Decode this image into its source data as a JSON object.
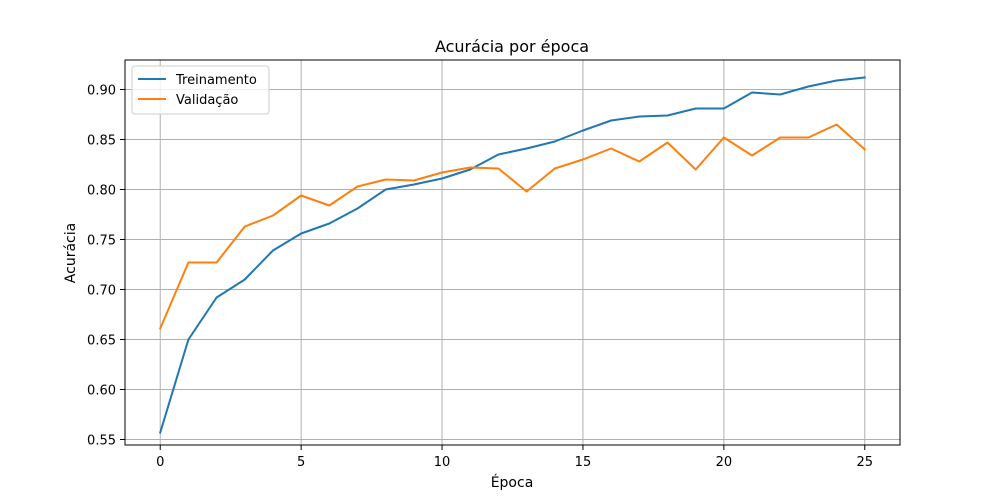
{
  "chart_data": {
    "type": "line",
    "title": "Acurácia por época",
    "xlabel": "Época",
    "ylabel": "Acurácia",
    "xlim": [
      -1.25,
      26.25
    ],
    "ylim": [
      0.5445,
      0.9295
    ],
    "xticks": [
      0,
      5,
      10,
      15,
      20,
      25
    ],
    "yticks": [
      0.55,
      0.6,
      0.65,
      0.7,
      0.75,
      0.8,
      0.85,
      0.9
    ],
    "ytick_labels": [
      "0.55",
      "0.60",
      "0.65",
      "0.70",
      "0.75",
      "0.80",
      "0.85",
      "0.90"
    ],
    "grid": true,
    "legend": "top-left",
    "x": [
      0,
      1,
      2,
      3,
      4,
      5,
      6,
      7,
      8,
      9,
      10,
      11,
      12,
      13,
      14,
      15,
      16,
      17,
      18,
      19,
      20,
      21,
      22,
      23,
      24,
      25
    ],
    "series": [
      {
        "name": "Treinamento",
        "color": "#1f77b4",
        "values": [
          0.557,
          0.65,
          0.692,
          0.71,
          0.739,
          0.756,
          0.766,
          0.781,
          0.8,
          0.805,
          0.811,
          0.82,
          0.835,
          0.841,
          0.848,
          0.859,
          0.869,
          0.873,
          0.874,
          0.881,
          0.881,
          0.897,
          0.895,
          0.903,
          0.909,
          0.912
        ]
      },
      {
        "name": "Validação",
        "color": "#ff7f0e",
        "values": [
          0.661,
          0.727,
          0.727,
          0.763,
          0.774,
          0.794,
          0.784,
          0.803,
          0.81,
          0.809,
          0.817,
          0.822,
          0.821,
          0.798,
          0.821,
          0.83,
          0.841,
          0.828,
          0.847,
          0.82,
          0.852,
          0.834,
          0.852,
          0.852,
          0.865,
          0.84
        ]
      }
    ]
  }
}
